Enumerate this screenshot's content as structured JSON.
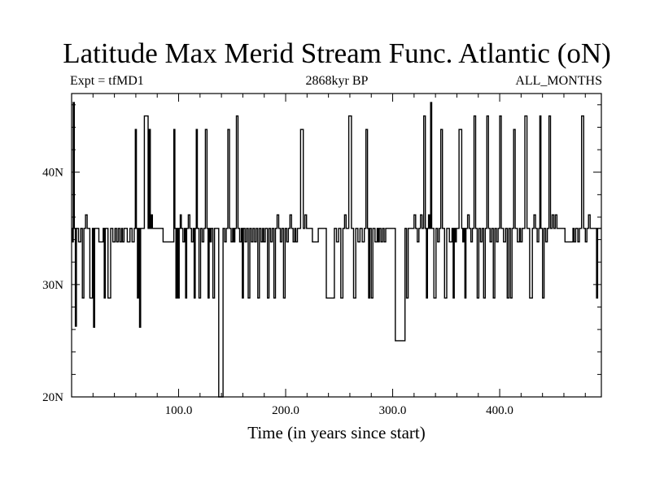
{
  "header": {
    "title": "Latitude Max Merid Stream Func. Atlantic (oN)",
    "left_label": "Expt = tfMD1",
    "center_label": "2868kyr BP",
    "right_label": "ALL_MONTHS"
  },
  "chart_data": {
    "type": "line",
    "title": "Latitude Max Merid Stream Func. Atlantic (oN)",
    "xlabel": "Time (in years since start)",
    "ylabel": "",
    "xlim": [
      0,
      495
    ],
    "ylim": [
      20,
      47
    ],
    "x_ticks": [
      100,
      200,
      300,
      400
    ],
    "x_tick_labels": [
      "100.0",
      "200.0",
      "300.0",
      "400.0"
    ],
    "y_ticks": [
      20,
      30,
      40
    ],
    "y_tick_labels": [
      "20N",
      "30N",
      "40N"
    ],
    "grid": false,
    "series": [
      {
        "baseline": 35,
        "points": [
          [
            0,
            35
          ],
          [
            1,
            33.8
          ],
          [
            2,
            46.2
          ],
          [
            3,
            35
          ],
          [
            4,
            26.3
          ],
          [
            5,
            35
          ],
          [
            8,
            33.8
          ],
          [
            9,
            35
          ],
          [
            11,
            28.8
          ],
          [
            12,
            35
          ],
          [
            14,
            36.2
          ],
          [
            15,
            35
          ],
          [
            19,
            28.8
          ],
          [
            20,
            35
          ],
          [
            21,
            26.2
          ],
          [
            22,
            35
          ],
          [
            29,
            33.8
          ],
          [
            30,
            35
          ],
          [
            31,
            28.8
          ],
          [
            32,
            35
          ],
          [
            36,
            28.8
          ],
          [
            37,
            35
          ],
          [
            40,
            33.8
          ],
          [
            41,
            35
          ],
          [
            43,
            33.8
          ],
          [
            44,
            35
          ],
          [
            46,
            33.8
          ],
          [
            47,
            35
          ],
          [
            48,
            33.8
          ],
          [
            50,
            35
          ],
          [
            54,
            33.8
          ],
          [
            55,
            35
          ],
          [
            58,
            33.8
          ],
          [
            59,
            35
          ],
          [
            60,
            43.8
          ],
          [
            61,
            35
          ],
          [
            62,
            28.8
          ],
          [
            63,
            35
          ],
          [
            64,
            26.2
          ],
          [
            65,
            35
          ],
          [
            71,
            45
          ],
          [
            72,
            35
          ],
          [
            73,
            43.8
          ],
          [
            74,
            35
          ],
          [
            75,
            36.2
          ],
          [
            76,
            35
          ],
          [
            95,
            33.8
          ],
          [
            96,
            43.8
          ],
          [
            97,
            35
          ],
          [
            98,
            28.8
          ],
          [
            99,
            35
          ],
          [
            100,
            28.8
          ],
          [
            101,
            35
          ],
          [
            102,
            36.2
          ],
          [
            103,
            35
          ],
          [
            105,
            33.8
          ],
          [
            106,
            35
          ],
          [
            107,
            28.8
          ],
          [
            108,
            35
          ],
          [
            110,
            36.2
          ],
          [
            111,
            35
          ],
          [
            113,
            33.8
          ],
          [
            114,
            35
          ],
          [
            115,
            28.8
          ],
          [
            116,
            35
          ],
          [
            117,
            43.8
          ],
          [
            118,
            35
          ],
          [
            120,
            28.8
          ],
          [
            121,
            35
          ],
          [
            123,
            33.8
          ],
          [
            124,
            35
          ],
          [
            126,
            43.8
          ],
          [
            127,
            35
          ],
          [
            128,
            28.8
          ],
          [
            129,
            35
          ],
          [
            130,
            33.8
          ],
          [
            131,
            35
          ],
          [
            133,
            28.8
          ],
          [
            134,
            35
          ],
          [
            141,
            20
          ],
          [
            142,
            35
          ],
          [
            144,
            33.8
          ],
          [
            145,
            35
          ],
          [
            147,
            43.8
          ],
          [
            148,
            35
          ],
          [
            150,
            33.8
          ],
          [
            151,
            35
          ],
          [
            152,
            33.8
          ],
          [
            153,
            35
          ],
          [
            155,
            45
          ],
          [
            156,
            35
          ],
          [
            158,
            33.8
          ],
          [
            159,
            35
          ],
          [
            160,
            28.8
          ],
          [
            161,
            35
          ],
          [
            163,
            33.8
          ],
          [
            164,
            35
          ],
          [
            166,
            28.8
          ],
          [
            167,
            35
          ],
          [
            169,
            33.8
          ],
          [
            170,
            35
          ],
          [
            172,
            33.8
          ],
          [
            173,
            35
          ],
          [
            175,
            28.8
          ],
          [
            176,
            35
          ],
          [
            178,
            33.8
          ],
          [
            179,
            35
          ],
          [
            180,
            33.8
          ],
          [
            182,
            35
          ],
          [
            184,
            28.8
          ],
          [
            185,
            35
          ],
          [
            187,
            33.8
          ],
          [
            188,
            35
          ],
          [
            190,
            28.8
          ],
          [
            191,
            35
          ],
          [
            193,
            36.2
          ],
          [
            194,
            35
          ],
          [
            196,
            33.8
          ],
          [
            197,
            35
          ],
          [
            199,
            28.8
          ],
          [
            200,
            35
          ],
          [
            202,
            33.8
          ],
          [
            203,
            35
          ],
          [
            205,
            36.2
          ],
          [
            206,
            35
          ],
          [
            208,
            33.8
          ],
          [
            209,
            35
          ],
          [
            210,
            33.8
          ],
          [
            212,
            35
          ],
          [
            216,
            43.8
          ],
          [
            217,
            35
          ],
          [
            219,
            36.2
          ],
          [
            220,
            35
          ],
          [
            230,
            33.8
          ],
          [
            231,
            35
          ],
          [
            245,
            28.8
          ],
          [
            246,
            35
          ],
          [
            249,
            33.8
          ],
          [
            250,
            35
          ],
          [
            253,
            28.8
          ],
          [
            254,
            35
          ],
          [
            256,
            36.2
          ],
          [
            257,
            35
          ],
          [
            261,
            45
          ],
          [
            262,
            35
          ],
          [
            265,
            28.8
          ],
          [
            266,
            35
          ],
          [
            269,
            33.8
          ],
          [
            270,
            35
          ],
          [
            273,
            33.8
          ],
          [
            274,
            35
          ],
          [
            276,
            43.8
          ],
          [
            277,
            35
          ],
          [
            278,
            28.8
          ],
          [
            279,
            35
          ],
          [
            281,
            28.8
          ],
          [
            282,
            35
          ],
          [
            285,
            33.8
          ],
          [
            286,
            35
          ],
          [
            287,
            33.8
          ],
          [
            288,
            35
          ],
          [
            290,
            33.8
          ],
          [
            291,
            35
          ],
          [
            293,
            33.8
          ],
          [
            294,
            35
          ],
          [
            311,
            25
          ],
          [
            312,
            35
          ],
          [
            314,
            28.8
          ],
          [
            315,
            35
          ],
          [
            319,
            35
          ],
          [
            321,
            36.2
          ],
          [
            322,
            35
          ],
          [
            324,
            33.8
          ],
          [
            325,
            35
          ],
          [
            327,
            36.2
          ],
          [
            328,
            35
          ],
          [
            330,
            45
          ],
          [
            331,
            35
          ],
          [
            332,
            28.8
          ],
          [
            333,
            35
          ],
          [
            334,
            36.2
          ],
          [
            335,
            35
          ],
          [
            336,
            46.2
          ],
          [
            337,
            35
          ],
          [
            340,
            28.8
          ],
          [
            341,
            35
          ],
          [
            343,
            33.8
          ],
          [
            344,
            35
          ],
          [
            346,
            43.8
          ],
          [
            347,
            35
          ],
          [
            350,
            28.8
          ],
          [
            351,
            35
          ],
          [
            355,
            33.8
          ],
          [
            356,
            35
          ],
          [
            357,
            28.8
          ],
          [
            358,
            35
          ],
          [
            359,
            33.8
          ],
          [
            360,
            35
          ],
          [
            364,
            43.8
          ],
          [
            365,
            35
          ],
          [
            366,
            33.8
          ],
          [
            367,
            35
          ],
          [
            368,
            28.8
          ],
          [
            369,
            35
          ],
          [
            371,
            36.2
          ],
          [
            372,
            35
          ],
          [
            374,
            33.8
          ],
          [
            375,
            35
          ],
          [
            377,
            45
          ],
          [
            378,
            35
          ],
          [
            380,
            28.8
          ],
          [
            381,
            35
          ],
          [
            383,
            33.8
          ],
          [
            384,
            35
          ],
          [
            386,
            28.8
          ],
          [
            387,
            35
          ],
          [
            389,
            45
          ],
          [
            390,
            35
          ],
          [
            392,
            33.8
          ],
          [
            393,
            35
          ],
          [
            395,
            28.8
          ],
          [
            396,
            35
          ],
          [
            398,
            33.8
          ],
          [
            399,
            35
          ],
          [
            401,
            45
          ],
          [
            402,
            35
          ],
          [
            405,
            33.8
          ],
          [
            406,
            35
          ],
          [
            408,
            28.8
          ],
          [
            409,
            35
          ],
          [
            411,
            28.8
          ],
          [
            412,
            35
          ],
          [
            414,
            43.8
          ],
          [
            415,
            35
          ],
          [
            418,
            33.8
          ],
          [
            419,
            35
          ],
          [
            420,
            33.8
          ],
          [
            422,
            35
          ],
          [
            425,
            45
          ],
          [
            426,
            35
          ],
          [
            430,
            28.8
          ],
          [
            431,
            35
          ],
          [
            433,
            36.2
          ],
          [
            434,
            35
          ],
          [
            436,
            33.8
          ],
          [
            437,
            35
          ],
          [
            438,
            45
          ],
          [
            439,
            35
          ],
          [
            441,
            28.8
          ],
          [
            442,
            35
          ],
          [
            444,
            33.8
          ],
          [
            445,
            35
          ],
          [
            447,
            45
          ],
          [
            448,
            35
          ],
          [
            450,
            36.2
          ],
          [
            451,
            35
          ],
          [
            453,
            36.2
          ],
          [
            454,
            35
          ],
          [
            468,
            33.8
          ],
          [
            469,
            35
          ],
          [
            470,
            33.8
          ],
          [
            472,
            35
          ],
          [
            474,
            33.8
          ],
          [
            475,
            35
          ],
          [
            478,
            45
          ],
          [
            479,
            35
          ],
          [
            481,
            33.8
          ],
          [
            482,
            35
          ],
          [
            484,
            36.2
          ],
          [
            485,
            35
          ],
          [
            490,
            35
          ],
          [
            491,
            28.8
          ],
          [
            492,
            35
          ],
          [
            495,
            35
          ]
        ]
      }
    ]
  }
}
